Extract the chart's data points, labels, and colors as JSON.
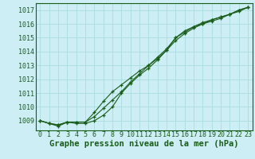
{
  "x": [
    0,
    1,
    2,
    3,
    4,
    5,
    6,
    7,
    8,
    9,
    10,
    11,
    12,
    13,
    14,
    15,
    16,
    17,
    18,
    19,
    20,
    21,
    22,
    23
  ],
  "line1": [
    1009.0,
    1008.8,
    1008.7,
    1008.9,
    1008.9,
    1008.9,
    1009.3,
    1009.9,
    1010.5,
    1011.1,
    1011.8,
    1012.4,
    1013.0,
    1013.6,
    1014.2,
    1015.0,
    1015.5,
    1015.8,
    1016.1,
    1016.3,
    1016.5,
    1016.7,
    1017.0,
    1017.2
  ],
  "line2": [
    1009.0,
    1008.8,
    1008.7,
    1008.9,
    1008.9,
    1008.9,
    1009.6,
    1010.4,
    1011.1,
    1011.6,
    1012.1,
    1012.6,
    1013.0,
    1013.5,
    1014.1,
    1014.8,
    1015.3,
    1015.7,
    1016.0,
    1016.3,
    1016.5,
    1016.7,
    1017.0,
    1017.2
  ],
  "line3": [
    1009.0,
    1008.8,
    1008.6,
    1008.9,
    1008.8,
    1008.8,
    1009.0,
    1009.4,
    1010.0,
    1011.0,
    1011.7,
    1012.3,
    1012.8,
    1013.4,
    1014.1,
    1015.0,
    1015.4,
    1015.8,
    1016.0,
    1016.2,
    1016.4,
    1016.7,
    1016.9,
    1017.2
  ],
  "bg_color": "#cceef4",
  "grid_color": "#aadddd",
  "line_color": "#1a5c1a",
  "text_color": "#1a5c1a",
  "xlabel": "Graphe pression niveau de la mer (hPa)",
  "ylim_min": 1008.3,
  "ylim_max": 1017.5,
  "title_fontsize": 7.5,
  "tick_fontsize": 6.0
}
